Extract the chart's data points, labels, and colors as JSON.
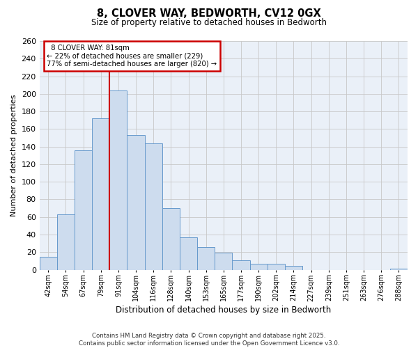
{
  "title": "8, CLOVER WAY, BEDWORTH, CV12 0GX",
  "subtitle": "Size of property relative to detached houses in Bedworth",
  "xlabel": "Distribution of detached houses by size in Bedworth",
  "ylabel": "Number of detached properties",
  "bar_color": "#cddcee",
  "bar_edge_color": "#6699cc",
  "bg_color": "#ffffff",
  "plot_bg_color": "#eaf0f8",
  "grid_color": "#c8c8c8",
  "categories": [
    "42sqm",
    "54sqm",
    "67sqm",
    "79sqm",
    "91sqm",
    "104sqm",
    "116sqm",
    "128sqm",
    "140sqm",
    "153sqm",
    "165sqm",
    "177sqm",
    "190sqm",
    "202sqm",
    "214sqm",
    "227sqm",
    "239sqm",
    "251sqm",
    "263sqm",
    "276sqm",
    "288sqm"
  ],
  "values": [
    15,
    63,
    136,
    172,
    204,
    153,
    144,
    70,
    37,
    26,
    19,
    11,
    7,
    7,
    4,
    0,
    0,
    0,
    0,
    0,
    1
  ],
  "ylim": [
    0,
    260
  ],
  "yticks": [
    0,
    20,
    40,
    60,
    80,
    100,
    120,
    140,
    160,
    180,
    200,
    220,
    240,
    260
  ],
  "vline_x": 3.5,
  "vline_color": "#cc0000",
  "annotation_title": "8 CLOVER WAY: 81sqm",
  "annotation_line1": "← 22% of detached houses are smaller (229)",
  "annotation_line2": "77% of semi-detached houses are larger (820) →",
  "annotation_box_color": "#ffffff",
  "annotation_box_edge": "#cc0000",
  "footer_line1": "Contains HM Land Registry data © Crown copyright and database right 2025.",
  "footer_line2": "Contains public sector information licensed under the Open Government Licence v3.0."
}
